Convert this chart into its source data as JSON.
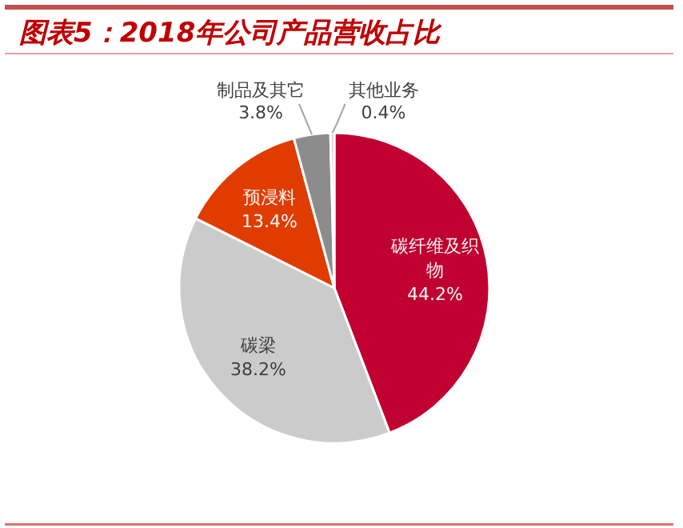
{
  "chart_data": {
    "type": "pie",
    "title": "图表5：2018年公司产品营收占比",
    "categories": [
      "碳纤维及织物",
      "碳梁",
      "预浸料",
      "制品及其它",
      "其他业务"
    ],
    "values": [
      44.2,
      38.2,
      13.4,
      3.8,
      0.4
    ],
    "colors": [
      "#c00030",
      "#cbcbcb",
      "#e03c00",
      "#8c8c8c",
      "#d0d0d0"
    ],
    "value_labels": [
      "44.2%",
      "38.2%",
      "13.4%",
      "3.8%",
      "0.4%"
    ]
  }
}
